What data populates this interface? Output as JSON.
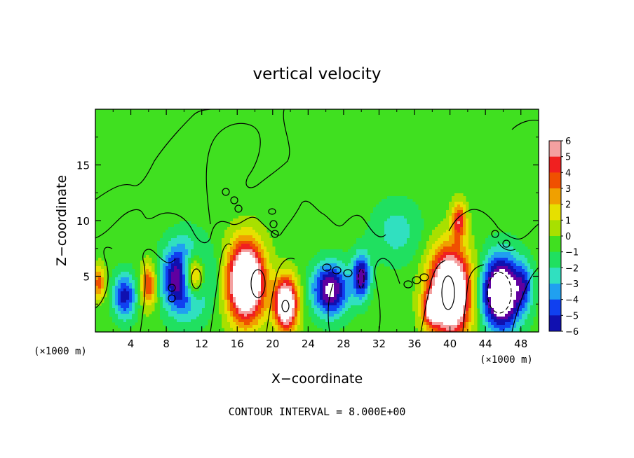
{
  "chart_data": {
    "type": "heatmap",
    "title": "vertical velocity",
    "xlabel": "X−coordinate",
    "ylabel": "Z−coordinate",
    "x_unit": "(×1000 m)",
    "y_unit": "(×1000 m)",
    "xlim": [
      0,
      50
    ],
    "ylim": [
      0,
      20
    ],
    "x_ticks": [
      4,
      8,
      12,
      16,
      20,
      24,
      28,
      32,
      36,
      40,
      44,
      48
    ],
    "y_ticks": [
      5,
      10,
      15
    ],
    "colorbar_levels": [
      "6",
      "5",
      "4",
      "3",
      "2",
      "1",
      "0",
      "−1",
      "−2",
      "−3",
      "−4",
      "−5",
      "−6"
    ],
    "colorbar_colors": [
      "#f4a0a0",
      "#f02020",
      "#f05000",
      "#f0a000",
      "#e6e000",
      "#a8e000",
      "#40e020",
      "#20e060",
      "#30e0c0",
      "#20a0f0",
      "#1040f0",
      "#1010b0",
      "#6000a0"
    ],
    "features": [
      {
        "kind": "updraft",
        "x": 11.0,
        "z": 5.0,
        "rx": 1.3,
        "rz": 2.0,
        "w": 10
      },
      {
        "kind": "downdraft",
        "x": 10.2,
        "z": 4.8,
        "rx": 2.4,
        "rz": 3.0,
        "w": -9
      },
      {
        "kind": "updraft",
        "x": 17.0,
        "z": 4.5,
        "rx": 2.0,
        "rz": 3.4,
        "w": 12
      },
      {
        "kind": "updraft",
        "x": 21.5,
        "z": 2.5,
        "rx": 1.3,
        "rz": 2.3,
        "w": 10
      },
      {
        "kind": "updraft",
        "x": 40.0,
        "z": 3.5,
        "rx": 2.3,
        "rz": 3.8,
        "w": 12
      },
      {
        "kind": "updraft",
        "x": 41.0,
        "z": 10.0,
        "rx": 0.8,
        "rz": 1.6,
        "w": 5
      },
      {
        "kind": "updraft",
        "x": 6.0,
        "z": 4.2,
        "rx": 0.9,
        "rz": 1.9,
        "w": 5
      },
      {
        "kind": "updraft",
        "x": 0.4,
        "z": 4.4,
        "rx": 0.7,
        "rz": 1.5,
        "w": 4
      },
      {
        "kind": "updraft",
        "x": 37.8,
        "z": 2.0,
        "rx": 0.9,
        "rz": 1.4,
        "w": 5
      },
      {
        "kind": "downdraft",
        "x": 45.8,
        "z": 3.5,
        "rx": 2.2,
        "rz": 3.2,
        "w": -10
      },
      {
        "kind": "downdraft",
        "x": 26.5,
        "z": 3.8,
        "rx": 2.0,
        "rz": 2.3,
        "w": -7
      },
      {
        "kind": "downdraft",
        "x": 30.0,
        "z": 5.0,
        "rx": 1.0,
        "rz": 2.0,
        "w": -6
      },
      {
        "kind": "downdraft",
        "x": 3.3,
        "z": 3.2,
        "rx": 1.3,
        "rz": 2.0,
        "w": -5
      },
      {
        "kind": "downdraft",
        "x": 48.4,
        "z": 4.2,
        "rx": 1.0,
        "rz": 2.0,
        "w": -3
      },
      {
        "kind": "downdraft",
        "x": 34.0,
        "z": 9.0,
        "rx": 2.8,
        "rz": 2.8,
        "w": -2
      }
    ],
    "contour_interval_label": "CONTOUR INTERVAL = 8.000E+00",
    "grid": false,
    "legend": "colorbar-right"
  }
}
